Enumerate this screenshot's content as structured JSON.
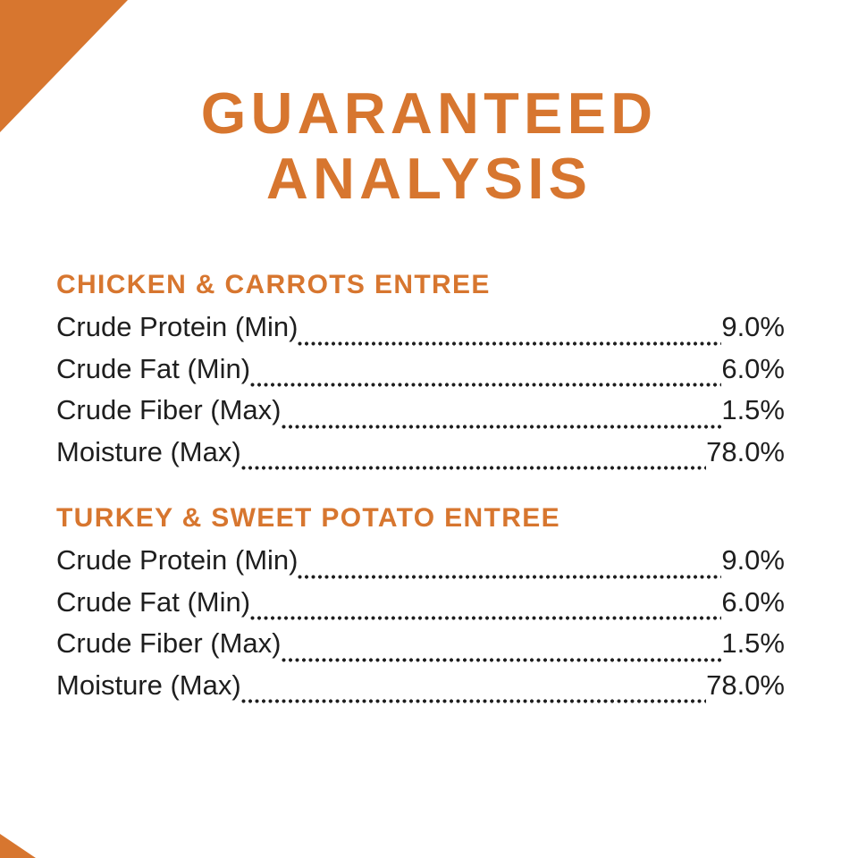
{
  "page": {
    "description": "Guaranteed analysis panel of a pet food label",
    "background_color": "#ffffff",
    "accent_color": "#d7762f",
    "text_color": "#1e1e1e"
  },
  "title": {
    "line1": "GUARANTEED",
    "line2": "ANALYSIS"
  },
  "sections": [
    {
      "heading": "CHICKEN & CARROTS ENTREE",
      "rows": [
        {
          "label": "Crude Protein (Min)",
          "value": "9.0%"
        },
        {
          "label": "Crude Fat (Min)",
          "value": "6.0%"
        },
        {
          "label": "Crude Fiber (Max)",
          "value": "1.5%"
        },
        {
          "label": "Moisture (Max)",
          "value": "78.0%"
        }
      ]
    },
    {
      "heading": "TURKEY & SWEET POTATO ENTREE",
      "rows": [
        {
          "label": "Crude Protein (Min)",
          "value": "9.0%"
        },
        {
          "label": "Crude Fat (Min)",
          "value": "6.0%"
        },
        {
          "label": "Crude Fiber (Max)",
          "value": "1.5%"
        },
        {
          "label": "Moisture (Max)",
          "value": "78.0%"
        }
      ]
    }
  ]
}
